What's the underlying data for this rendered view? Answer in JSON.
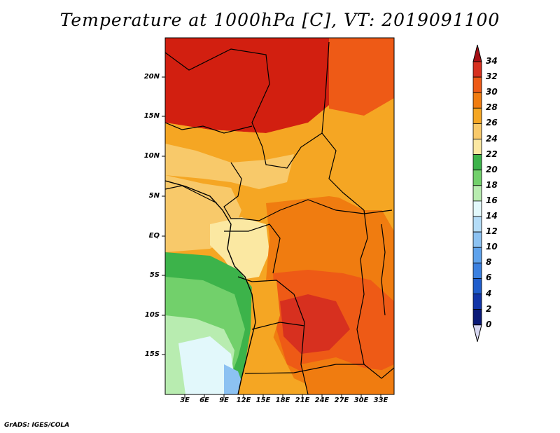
{
  "title": "Temperature at 1000hPa [C], VT: 2019091100",
  "credit": "GrADS: IGES/COLA",
  "map": {
    "y_ticks": [
      "20N",
      "15N",
      "10N",
      "5N",
      "EQ",
      "5S",
      "10S",
      "15S"
    ],
    "x_ticks": [
      "3E",
      "6E",
      "9E",
      "12E",
      "15E",
      "18E",
      "21E",
      "24E",
      "27E",
      "30E",
      "33E"
    ]
  },
  "colorbar": {
    "labels": [
      "34",
      "32",
      "30",
      "28",
      "26",
      "24",
      "22",
      "20",
      "18",
      "16",
      "14",
      "12",
      "10",
      "8",
      "6",
      "4",
      "2",
      "0"
    ],
    "colors": [
      "#a50f15",
      "#d7301f",
      "#ee5a16",
      "#f07c10",
      "#f5a623",
      "#f8c96a",
      "#fbe8a2",
      "#3cb34a",
      "#72d06b",
      "#b8ecb0",
      "#e2f8fb",
      "#b4dcf7",
      "#8cc2f2",
      "#5ea2ec",
      "#3b80e0",
      "#1f5dcc",
      "#1235a8",
      "#0a1a78",
      "#000a5c"
    ]
  }
}
